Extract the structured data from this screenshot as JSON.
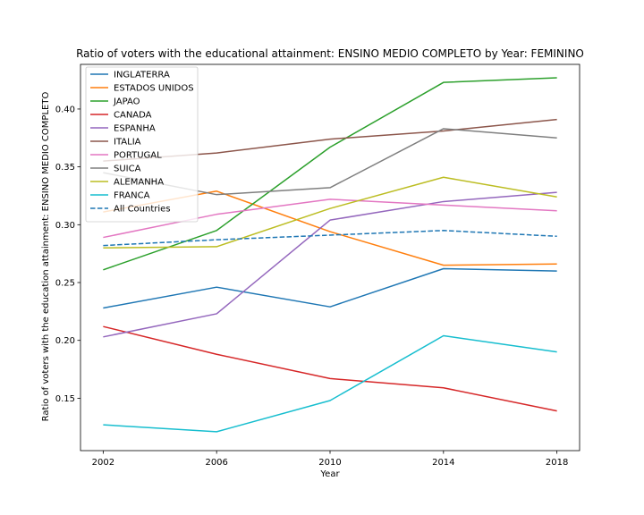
{
  "chart_data": {
    "type": "line",
    "title": "Ratio of voters with the educational attainment: ENSINO MEDIO COMPLETO by Year: FEMININO",
    "xlabel": "Year",
    "ylabel": "Ratio of voters with the education attainment: ENSINO MEDIO COMPLETO",
    "x": [
      2002,
      2006,
      2010,
      2014,
      2018
    ],
    "xlim": [
      2001.2,
      2018.8
    ],
    "ylim": [
      0.1047,
      0.4386
    ],
    "yticks": [
      0.15,
      0.2,
      0.25,
      0.3,
      0.35,
      0.4
    ],
    "ytick_labels": [
      "0.15",
      "0.20",
      "0.25",
      "0.30",
      "0.35",
      "0.40"
    ],
    "xtick_labels": [
      "2002",
      "2006",
      "2010",
      "2014",
      "2018"
    ],
    "grid": false,
    "legend_position": "top-left",
    "series": [
      {
        "name": "INGLATERRA",
        "color": "#1f77b4",
        "dashed": false,
        "values": [
          0.228,
          0.246,
          0.229,
          0.262,
          0.26
        ]
      },
      {
        "name": "ESTADOS UNIDOS",
        "color": "#ff7f0e",
        "dashed": false,
        "values": [
          0.311,
          0.329,
          0.294,
          0.265,
          0.266
        ]
      },
      {
        "name": "JAPAO",
        "color": "#2ca02c",
        "dashed": false,
        "values": [
          0.261,
          0.295,
          0.367,
          0.423,
          0.427
        ]
      },
      {
        "name": "CANADA",
        "color": "#d62728",
        "dashed": false,
        "values": [
          0.212,
          0.188,
          0.167,
          0.159,
          0.139
        ]
      },
      {
        "name": "ESPANHA",
        "color": "#9467bd",
        "dashed": false,
        "values": [
          0.203,
          0.223,
          0.304,
          0.32,
          0.328
        ]
      },
      {
        "name": "ITALIA",
        "color": "#8c564b",
        "dashed": false,
        "values": [
          0.355,
          0.362,
          0.374,
          0.381,
          0.391
        ]
      },
      {
        "name": "PORTUGAL",
        "color": "#e377c2",
        "dashed": false,
        "values": [
          0.289,
          0.309,
          0.322,
          0.317,
          0.312
        ]
      },
      {
        "name": "SUICA",
        "color": "#7f7f7f",
        "dashed": false,
        "values": [
          0.345,
          0.326,
          0.332,
          0.383,
          0.375
        ]
      },
      {
        "name": "ALEMANHA",
        "color": "#bcbd22",
        "dashed": false,
        "values": [
          0.28,
          0.281,
          0.314,
          0.341,
          0.324
        ]
      },
      {
        "name": "FRANCA",
        "color": "#17becf",
        "dashed": false,
        "values": [
          0.127,
          0.121,
          0.148,
          0.204,
          0.19
        ]
      },
      {
        "name": "All Countries",
        "color": "#1f77b4",
        "dashed": true,
        "values": [
          0.282,
          0.287,
          0.291,
          0.295,
          0.29
        ]
      }
    ]
  }
}
